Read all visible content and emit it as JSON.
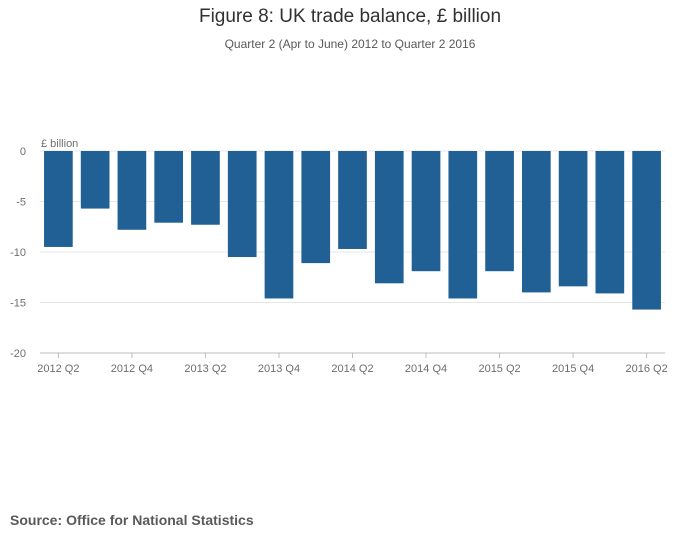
{
  "title": "Figure 8: UK trade balance, £ billion",
  "subtitle": "Quarter 2 (Apr to June) 2012 to Quarter 2 2016",
  "source": {
    "label": "Source:",
    "text": "Office for National Statistics"
  },
  "colors": {
    "bar": "#206095",
    "grid": "#e6e7e8",
    "axis": "#bcbec0"
  },
  "chart_data": {
    "type": "bar",
    "title": "Figure 8: UK trade balance, £ billion",
    "ylabel": "£ billion",
    "xlabel": "",
    "ylim": [
      -20,
      0
    ],
    "yticks": [
      0,
      -5,
      -10,
      -15,
      -20
    ],
    "categories": [
      "2012 Q2",
      "2012 Q3",
      "2012 Q4",
      "2013 Q1",
      "2013 Q2",
      "2013 Q3",
      "2013 Q4",
      "2014 Q1",
      "2014 Q2",
      "2014 Q3",
      "2014 Q4",
      "2015 Q1",
      "2015 Q2",
      "2015 Q3",
      "2015 Q4",
      "2016 Q1",
      "2016 Q2"
    ],
    "values": [
      -9.5,
      -5.7,
      -7.8,
      -7.1,
      -7.3,
      -10.5,
      -14.6,
      -11.1,
      -9.7,
      -13.1,
      -11.9,
      -14.6,
      -11.9,
      -14.0,
      -13.4,
      -14.1,
      -15.7
    ],
    "xtick_labels": [
      "2012 Q2",
      "2012 Q4",
      "2013 Q2",
      "2013 Q4",
      "2014 Q2",
      "2014 Q4",
      "2015 Q2",
      "2015 Q4",
      "2016 Q2"
    ],
    "grid": true
  }
}
